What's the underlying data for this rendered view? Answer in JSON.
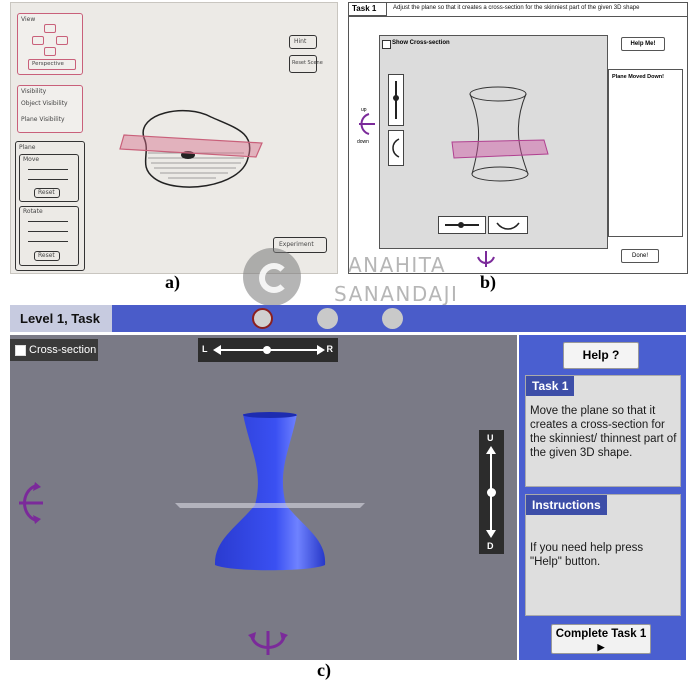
{
  "captions": {
    "a": "a)",
    "b": "b)",
    "c": "c)"
  },
  "watermark": {
    "line1": "ANAHITA",
    "line2": "SANANDAJI"
  },
  "sketch": {
    "view_label": "View",
    "perspective_label": "Perspective",
    "visibility_label": "Visibility",
    "object_visibility_label": "Object Visibility",
    "plane_visibility_label": "Plane Visibility",
    "plane_label": "Plane",
    "move_label": "Move",
    "reset1_label": "Reset",
    "rotate_label": "Rotate",
    "reset2_label": "Reset",
    "hint_label": "Hint",
    "reset_scene_label": "Reset Scene",
    "experiment_label": "Experiment"
  },
  "wireframe": {
    "task_label": "Task 1",
    "task_text": "Adjust the plane so that it creates a cross-section for the skinniest part of the given 3D shape",
    "show_cross_section_label": "Show Cross-section",
    "help_button_label": "Help Me!",
    "feedback_text": "Plane Moved Down!",
    "up_label": "up",
    "down_label": "down",
    "done_button_label": "Done!"
  },
  "app": {
    "level_title": "Level 1, Task",
    "progress_dots": [
      {
        "active": true
      },
      {
        "active": false
      },
      {
        "active": false
      }
    ],
    "cross_section_label": "Cross-section",
    "slider_left_label": "L",
    "slider_right_label": "R",
    "slider_up_label": "U",
    "slider_down_label": "D",
    "help_button_label": "Help ?",
    "task_title": "Task 1",
    "task_text": "Move the plane so that it creates a cross-section for the skinniest/ thinnest part of the given 3D shape.",
    "instructions_title": "Instructions",
    "instructions_text": "If you need help press \"Help\" button.",
    "complete_button_label": "Complete Task 1",
    "complete_button_arrow": "▶",
    "colors": {
      "top_bar": "#4a5cc9",
      "side_panel": "#4a5fd0",
      "viewport": "#7a7a86",
      "shape": "#2f43e0",
      "rotate_icon": "#7b2a9a"
    }
  }
}
